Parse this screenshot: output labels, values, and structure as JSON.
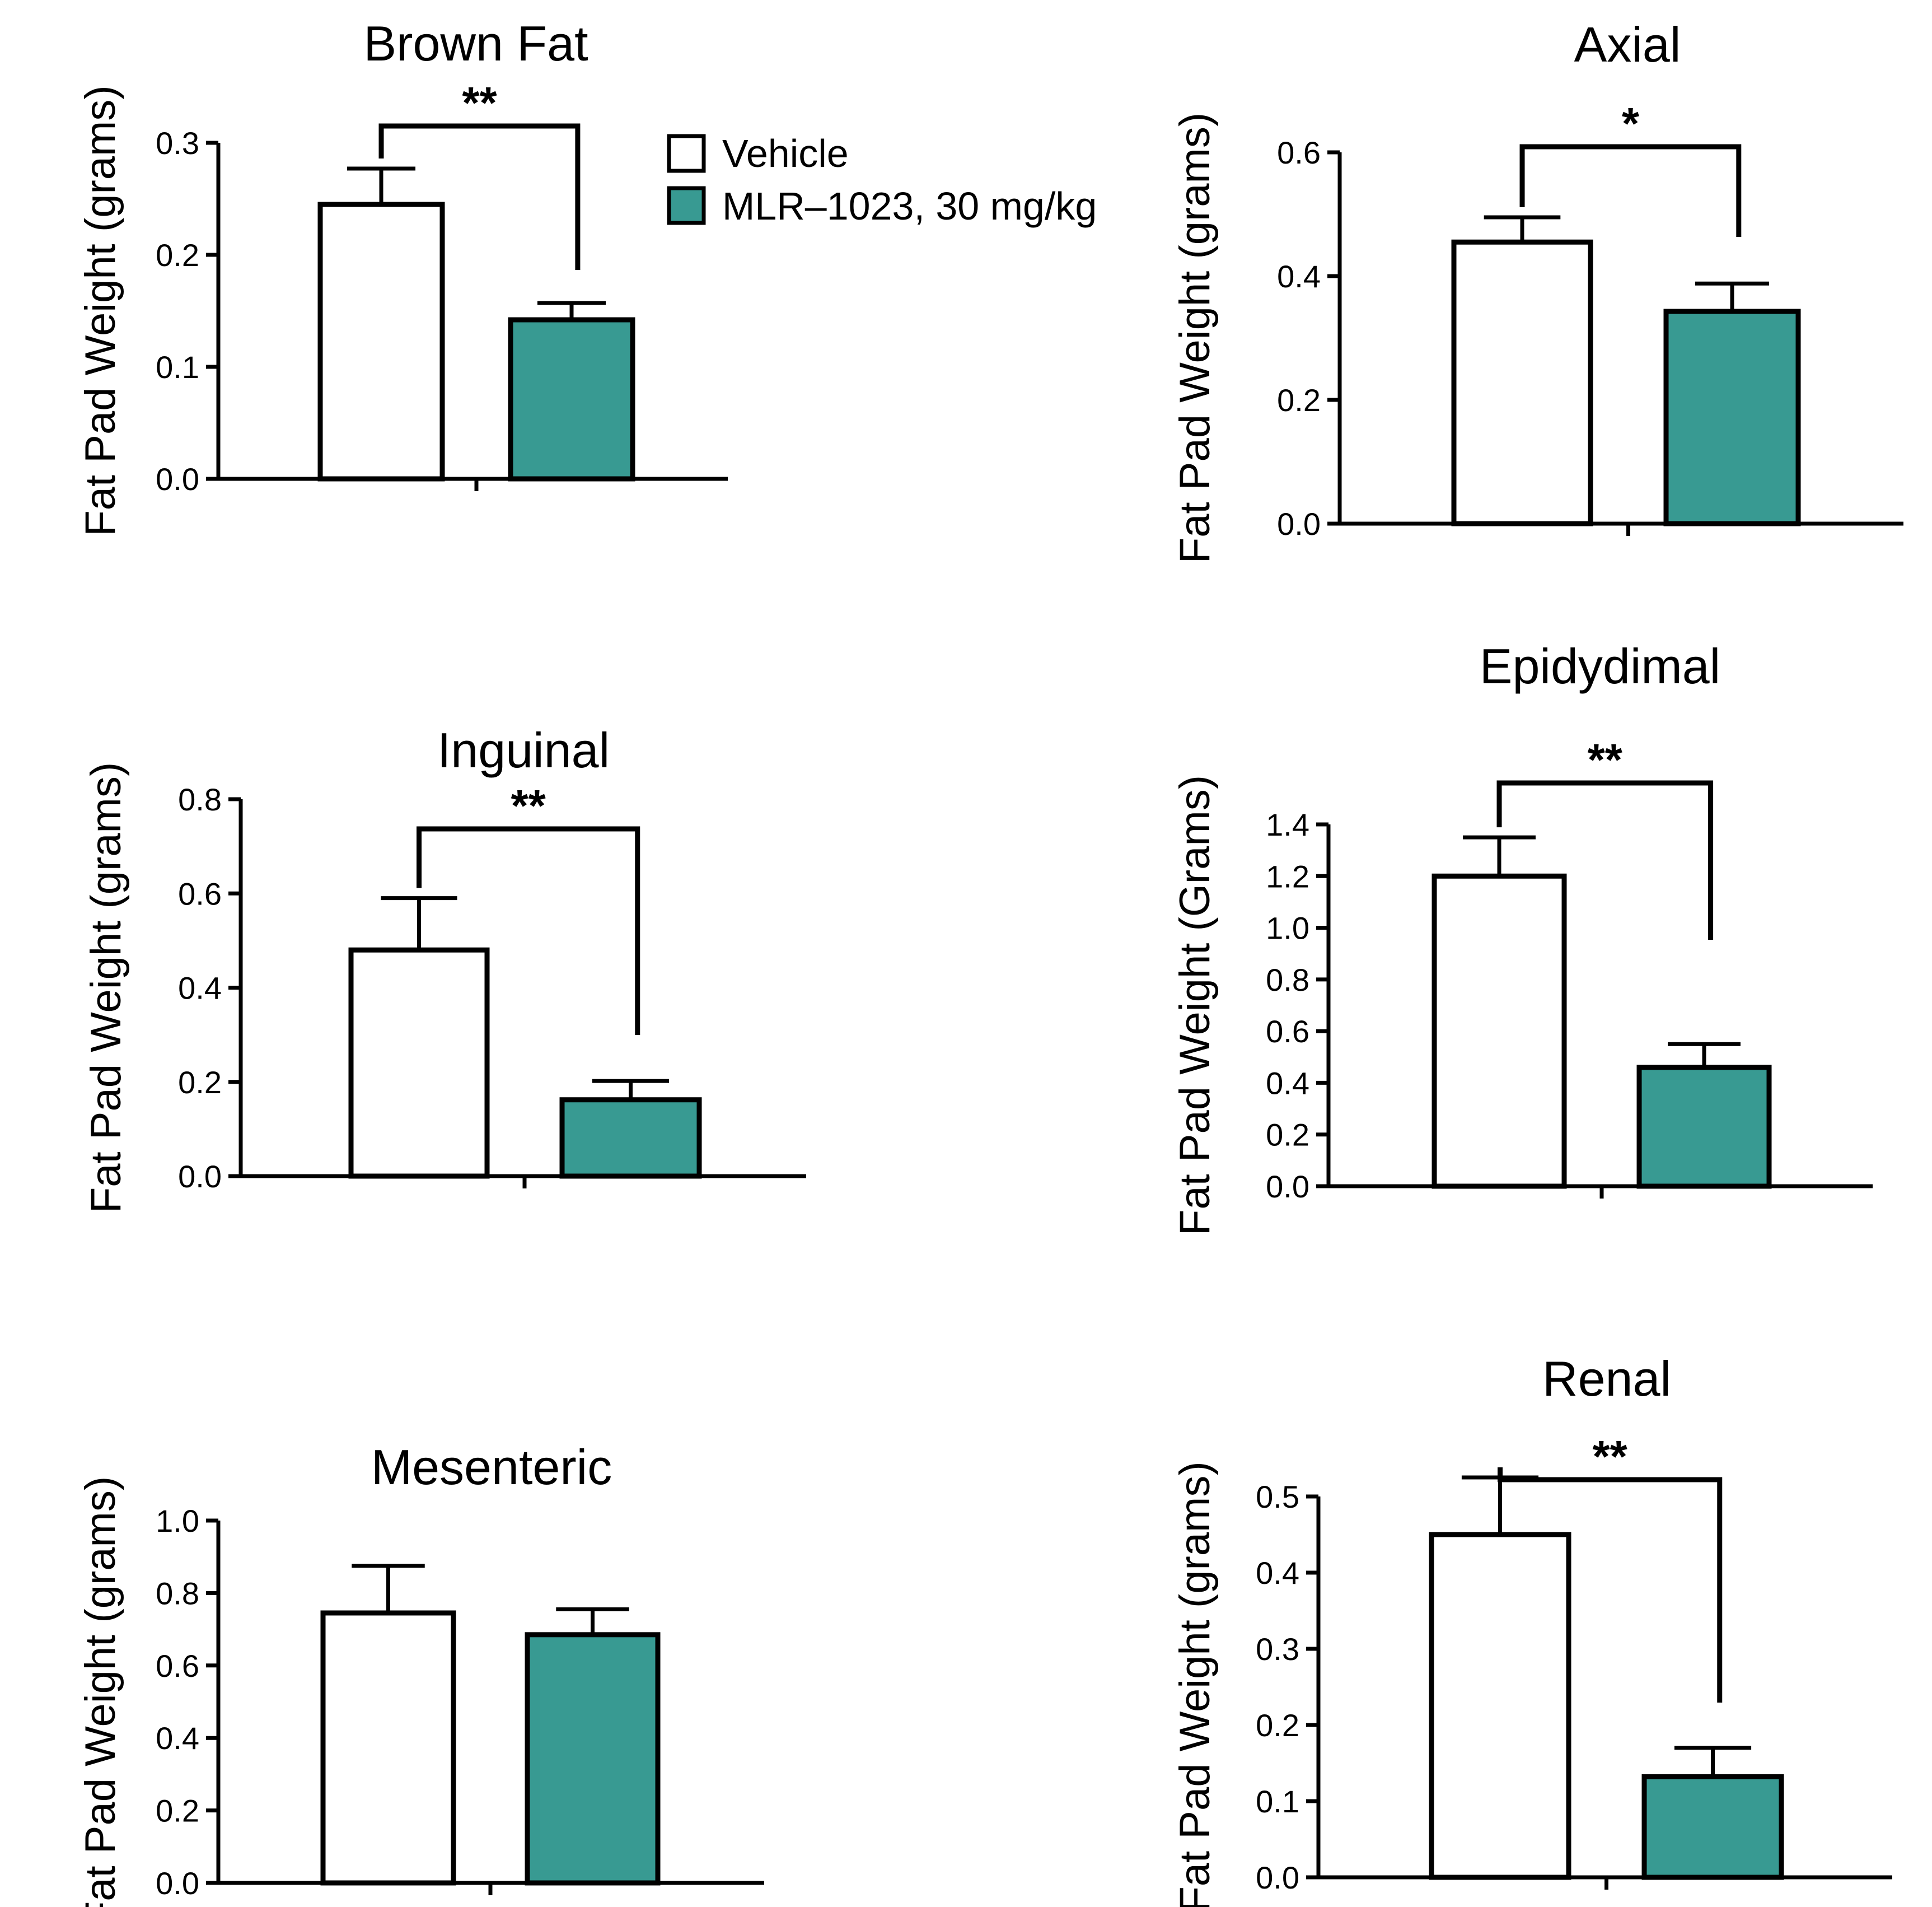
{
  "colors": {
    "vehicle_fill": "#ffffff",
    "treatment_fill": "#389a92",
    "stroke": "#000000"
  },
  "legend": {
    "items": [
      {
        "label": "Vehicle",
        "color": "#ffffff"
      },
      {
        "label": "MLR–1023, 30 mg/kg",
        "color": "#389a92"
      }
    ]
  },
  "chart_data": [
    {
      "type": "bar",
      "title": "Brown Fat",
      "ylabel": "Fat Pad Weight (grams)",
      "ylim": [
        0,
        0.3
      ],
      "yticks": [
        "0.0",
        "0.1",
        "0.2",
        "0.3"
      ],
      "series": [
        {
          "name": "Vehicle",
          "values": [
            0.245
          ],
          "error": [
            0.032
          ]
        },
        {
          "name": "MLR–1023, 30 mg/kg",
          "values": [
            0.142
          ],
          "error": [
            0.015
          ]
        }
      ],
      "significance": "**"
    },
    {
      "type": "bar",
      "title": "Axial",
      "ylabel": "Fat Pad Weight (grams)",
      "ylim": [
        0,
        0.6
      ],
      "yticks": [
        "0.0",
        "0.2",
        "0.4",
        "0.6"
      ],
      "series": [
        {
          "name": "Vehicle",
          "values": [
            0.455
          ],
          "error": [
            0.04
          ]
        },
        {
          "name": "MLR–1023, 30 mg/kg",
          "values": [
            0.343
          ],
          "error": [
            0.045
          ]
        }
      ],
      "significance": "*"
    },
    {
      "type": "bar",
      "title": "Inguinal",
      "ylabel": "Fat Pad Weight (grams)",
      "ylim": [
        0,
        0.8
      ],
      "yticks": [
        "0.0",
        "0.2",
        "0.4",
        "0.6",
        "0.8"
      ],
      "series": [
        {
          "name": "Vehicle",
          "values": [
            0.48
          ],
          "error": [
            0.11
          ]
        },
        {
          "name": "MLR–1023, 30 mg/kg",
          "values": [
            0.162
          ],
          "error": [
            0.04
          ]
        }
      ],
      "significance": "**"
    },
    {
      "type": "bar",
      "title": "Epidydimal",
      "ylabel": "Fat Pad Weight (Grams)",
      "ylim": [
        0,
        1.4
      ],
      "yticks": [
        "0.0",
        "0.2",
        "0.4",
        "0.6",
        "0.8",
        "1.0",
        "1.2",
        "1.4"
      ],
      "series": [
        {
          "name": "Vehicle",
          "values": [
            1.2
          ],
          "error": [
            0.15
          ]
        },
        {
          "name": "MLR–1023, 30 mg/kg",
          "values": [
            0.46
          ],
          "error": [
            0.09
          ]
        }
      ],
      "significance": "**"
    },
    {
      "type": "bar",
      "title": "Mesenteric",
      "ylabel": "Fat Pad Weight (grams)",
      "ylim": [
        0,
        1.0
      ],
      "yticks": [
        "0.0",
        "0.2",
        "0.4",
        "0.6",
        "0.8",
        "1.0"
      ],
      "series": [
        {
          "name": "Vehicle",
          "values": [
            0.745
          ],
          "error": [
            0.13
          ]
        },
        {
          "name": "MLR–1023, 30 mg/kg",
          "values": [
            0.685
          ],
          "error": [
            0.07
          ]
        }
      ],
      "significance": ""
    },
    {
      "type": "bar",
      "title": "Renal",
      "ylabel": "Fat Pad Weight (grams)",
      "ylim": [
        0,
        0.5
      ],
      "yticks": [
        "0.0",
        "0.1",
        "0.2",
        "0.3",
        "0.4",
        "0.5"
      ],
      "series": [
        {
          "name": "Vehicle",
          "values": [
            0.45
          ],
          "error": [
            0.075
          ]
        },
        {
          "name": "MLR–1023, 30 mg/kg",
          "values": [
            0.132
          ],
          "error": [
            0.038
          ]
        }
      ],
      "significance": "**"
    }
  ]
}
